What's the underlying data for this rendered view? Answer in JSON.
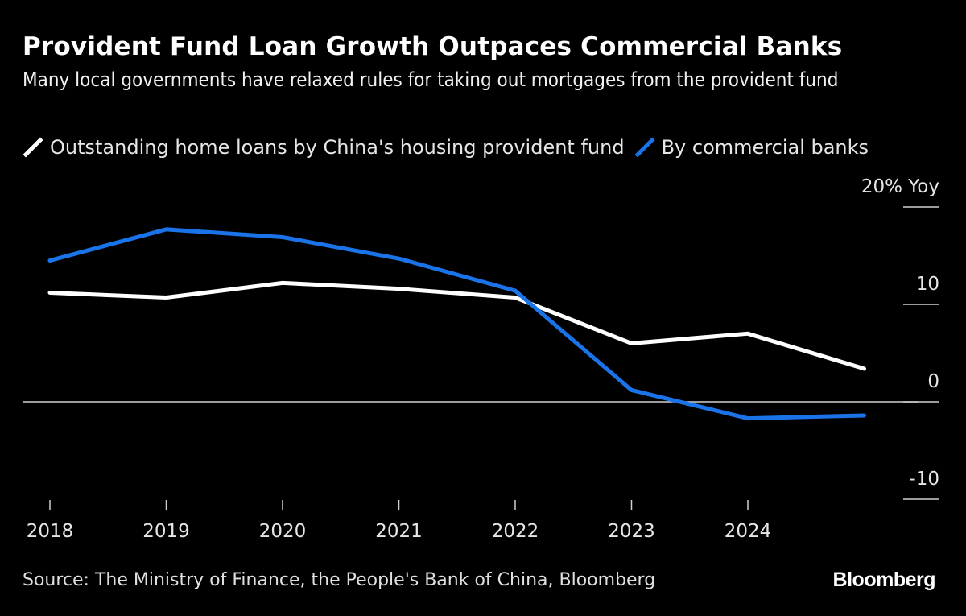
{
  "header": {
    "title": "Provident Fund Loan Growth Outpaces Commercial Banks",
    "subtitle": "Many local governments have relaxed rules for taking out mortgages from the provident fund"
  },
  "footer": {
    "source": "Source: The Ministry of Finance, the People's Bank of China, Bloomberg",
    "brand": "Bloomberg"
  },
  "colors": {
    "background": "#000000",
    "provident_fund": "#ffffff",
    "commercial_banks": "#1a73e8",
    "axis": "#d0d0d0"
  },
  "chart_data": {
    "type": "line",
    "title": "Provident Fund Loan Growth Outpaces Commercial Banks",
    "subtitle": "Many local governments have relaxed rules for taking out mortgages from the provident fund",
    "xlabel": "",
    "ylabel": "% Yoy",
    "x": [
      2018,
      2019,
      2020,
      2021,
      2022,
      2023,
      2024,
      2025
    ],
    "x_tick_labels": [
      "2018",
      "2019",
      "2020",
      "2021",
      "2022",
      "2023",
      "2024"
    ],
    "y_ticks": [
      20,
      10,
      0,
      -10
    ],
    "y_tick_labels": [
      "20% Yoy",
      "10",
      "0",
      "-10"
    ],
    "ylim": [
      -10,
      20
    ],
    "zero_line": true,
    "grid": false,
    "legend_position": "top-left",
    "series": [
      {
        "name": "Outstanding home loans by China's housing provident fund",
        "color": "#ffffff",
        "values": [
          11.2,
          10.7,
          12.2,
          11.6,
          10.7,
          6.0,
          7.0,
          3.4
        ]
      },
      {
        "name": "By commercial banks",
        "color": "#1a73e8",
        "values": [
          14.5,
          17.7,
          16.9,
          14.7,
          11.4,
          1.2,
          -1.7,
          -1.4
        ]
      }
    ]
  }
}
